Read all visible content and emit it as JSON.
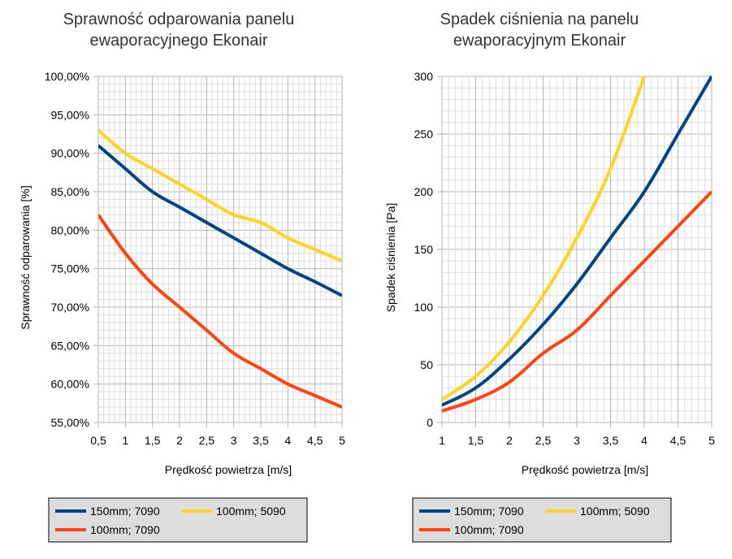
{
  "chart_data": [
    {
      "type": "line",
      "title": [
        "Sprawność odparowania panelu",
        "ewaporacyjnego Ekonair"
      ],
      "xlabel": "Prędkość powietrza [m/s]",
      "ylabel": "Sprawność odparowania [%]",
      "x": [
        0.5,
        1,
        1.5,
        2,
        2.5,
        3,
        3.5,
        4,
        4.5,
        5
      ],
      "x_tick_labels": [
        "0,5",
        "1",
        "1,5",
        "2",
        "2,5",
        "3",
        "3,5",
        "4",
        "4,5",
        "5"
      ],
      "xlim": [
        0.5,
        5
      ],
      "ylim": [
        55,
        100
      ],
      "y_ticks": [
        55,
        60,
        65,
        70,
        75,
        80,
        85,
        90,
        95,
        100
      ],
      "y_tick_labels": [
        "55,00%",
        "60,00%",
        "65,00%",
        "70,00%",
        "75,00%",
        "80,00%",
        "85,00%",
        "90,00%",
        "95,00%",
        "100,00%"
      ],
      "grid": true,
      "legend_position": "bottom",
      "series": [
        {
          "name": "150mm; 7090",
          "color": "#004586",
          "values": [
            91,
            88,
            85,
            83,
            81,
            79,
            77,
            75,
            73.3,
            71.5
          ]
        },
        {
          "name": "100mm; 5090",
          "color": "#ffd320",
          "values": [
            93,
            90,
            88,
            86,
            84,
            82,
            81,
            79,
            77.5,
            76
          ]
        },
        {
          "name": "100mm; 7090",
          "color": "#ff420e",
          "values": [
            82,
            77,
            73,
            70,
            67,
            64,
            62,
            60,
            58.5,
            57
          ]
        }
      ]
    },
    {
      "type": "line",
      "title": [
        "Spadek ciśnienia na panelu",
        "ewaporacyjnym Ekonair"
      ],
      "xlabel": "Prędkość powietrza [m/s]",
      "ylabel": "Spadek ciśnienia [Pa]",
      "x": [
        1,
        1.5,
        2,
        2.5,
        3,
        3.5,
        4,
        4.5,
        5
      ],
      "x_tick_labels": [
        "1",
        "1,5",
        "2",
        "2,5",
        "3",
        "3,5",
        "4",
        "4,5",
        "5"
      ],
      "xlim": [
        1,
        5
      ],
      "ylim": [
        0,
        300
      ],
      "y_ticks": [
        0,
        50,
        100,
        150,
        200,
        250,
        300
      ],
      "y_tick_labels": [
        "0",
        "50",
        "100",
        "150",
        "200",
        "250",
        "300"
      ],
      "grid": true,
      "legend_position": "bottom",
      "series": [
        {
          "name": "150mm; 7090",
          "color": "#004586",
          "values": [
            15,
            30,
            55,
            85,
            120,
            160,
            200,
            250,
            300
          ]
        },
        {
          "name": "100mm; 5090",
          "color": "#ffd320",
          "values": [
            20,
            40,
            70,
            110,
            160,
            220,
            300,
            null,
            null
          ]
        },
        {
          "name": "100mm; 7090",
          "color": "#ff420e",
          "values": [
            10,
            20,
            35,
            60,
            80,
            110,
            140,
            170,
            200
          ]
        }
      ]
    }
  ]
}
